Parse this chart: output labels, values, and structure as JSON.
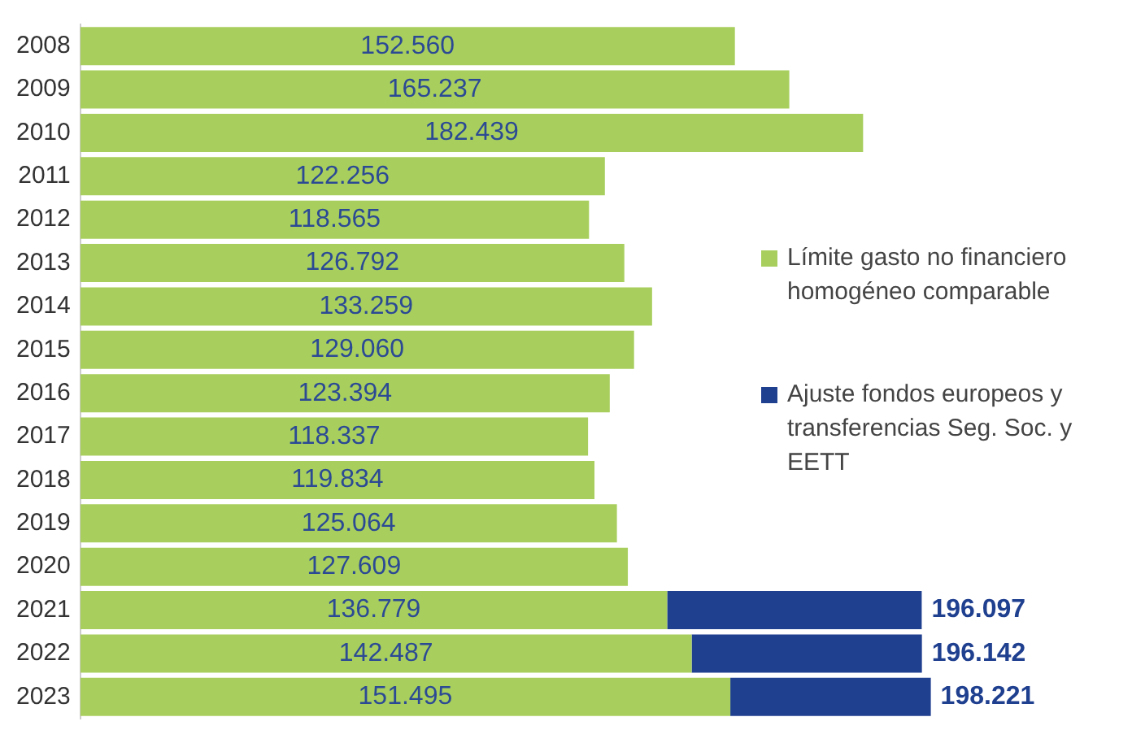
{
  "chart_data": {
    "type": "bar",
    "orientation": "horizontal",
    "stacked": true,
    "grid": false,
    "legend": "right",
    "categories": [
      "2008",
      "2009",
      "2010",
      "2011",
      "2012",
      "2013",
      "2014",
      "2015",
      "2016",
      "2017",
      "2018",
      "2019",
      "2020",
      "2021",
      "2022",
      "2023"
    ],
    "series": [
      {
        "name": "Límite gasto no financiero homogéneo comparable",
        "color": "#a8cf5e",
        "values": [
          152560,
          165237,
          182439,
          122256,
          118565,
          126792,
          133259,
          129060,
          123394,
          118337,
          119834,
          125064,
          127609,
          136779,
          142487,
          151495
        ],
        "value_labels": [
          "152.560",
          "165.237",
          "182.439",
          "122.256",
          "118.565",
          "126.792",
          "133.259",
          "129.060",
          "123.394",
          "118.337",
          "119.834",
          "125.064",
          "127.609",
          "136.779",
          "142.487",
          "151.495"
        ]
      },
      {
        "name": "Ajuste fondos europeos y transferencias Seg. Soc. y EETT",
        "color": "#1f3f8f",
        "values": [
          null,
          null,
          null,
          null,
          null,
          null,
          null,
          null,
          null,
          null,
          null,
          null,
          null,
          59318,
          53655,
          46726
        ]
      }
    ],
    "totals": [
      null,
      null,
      null,
      null,
      null,
      null,
      null,
      null,
      null,
      null,
      null,
      null,
      null,
      "196.097",
      "196.142",
      "198.221"
    ]
  }
}
